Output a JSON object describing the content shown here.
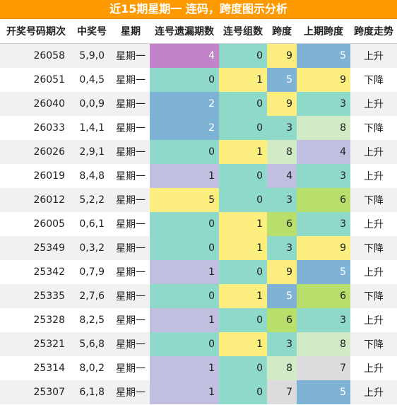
{
  "title": "近15期星期一 连码，跨度图示分析",
  "columns": [
    "开奖号码期次",
    "中奖号",
    "星期",
    "连号遗漏期数",
    "连号组数",
    "跨度",
    "上期跨度",
    "跨度走势"
  ],
  "colors": {
    "accent_orange": "#ff9900",
    "purple": "#c283c8",
    "teal": "#8ed9c9",
    "blue": "#7fb3d6",
    "yellow": "#fcee7f",
    "lavender": "#c0bfe0",
    "light_green": "#d1ebc6",
    "green": "#b8df6c",
    "gray": "#dcdcdc"
  },
  "rows": [
    {
      "issue": "26058",
      "nums": "5,9,0",
      "week": "星期一",
      "miss": "4",
      "miss_color": "#c283c8",
      "miss_white": true,
      "groups": "0",
      "groups_color": "#8ed9c9",
      "span": "9",
      "span_color": "#fcee7f",
      "span_white": false,
      "prev": "5",
      "prev_color": "#7fb3d6",
      "prev_white": true,
      "trend": "上升"
    },
    {
      "issue": "26051",
      "nums": "0,4,5",
      "week": "星期一",
      "miss": "0",
      "miss_color": "#8ed9c9",
      "miss_white": false,
      "groups": "1",
      "groups_color": "#fcee7f",
      "span": "5",
      "span_color": "#7fb3d6",
      "span_white": true,
      "prev": "9",
      "prev_color": "#fcee7f",
      "prev_white": false,
      "trend": "下降"
    },
    {
      "issue": "26040",
      "nums": "0,0,9",
      "week": "星期一",
      "miss": "2",
      "miss_color": "#7fb3d6",
      "miss_white": true,
      "groups": "0",
      "groups_color": "#8ed9c9",
      "span": "9",
      "span_color": "#fcee7f",
      "span_white": false,
      "prev": "3",
      "prev_color": "#8ed9c9",
      "prev_white": false,
      "trend": "上升"
    },
    {
      "issue": "26033",
      "nums": "1,4,1",
      "week": "星期一",
      "miss": "2",
      "miss_color": "#7fb3d6",
      "miss_white": true,
      "groups": "0",
      "groups_color": "#8ed9c9",
      "span": "3",
      "span_color": "#8ed9c9",
      "span_white": false,
      "prev": "8",
      "prev_color": "#d1ebc6",
      "prev_white": false,
      "trend": "下降"
    },
    {
      "issue": "26026",
      "nums": "2,9,1",
      "week": "星期一",
      "miss": "0",
      "miss_color": "#8ed9c9",
      "miss_white": false,
      "groups": "1",
      "groups_color": "#fcee7f",
      "span": "8",
      "span_color": "#d1ebc6",
      "span_white": false,
      "prev": "4",
      "prev_color": "#c0bfe0",
      "prev_white": false,
      "trend": "上升"
    },
    {
      "issue": "26019",
      "nums": "8,4,8",
      "week": "星期一",
      "miss": "1",
      "miss_color": "#c0bfe0",
      "miss_white": false,
      "groups": "0",
      "groups_color": "#8ed9c9",
      "span": "4",
      "span_color": "#c0bfe0",
      "span_white": false,
      "prev": "3",
      "prev_color": "#8ed9c9",
      "prev_white": false,
      "trend": "上升"
    },
    {
      "issue": "26012",
      "nums": "5,2,2",
      "week": "星期一",
      "miss": "5",
      "miss_color": "#fcee7f",
      "miss_white": false,
      "groups": "0",
      "groups_color": "#8ed9c9",
      "span": "3",
      "span_color": "#8ed9c9",
      "span_white": false,
      "prev": "6",
      "prev_color": "#b8df6c",
      "prev_white": false,
      "trend": "下降"
    },
    {
      "issue": "26005",
      "nums": "0,6,1",
      "week": "星期一",
      "miss": "0",
      "miss_color": "#8ed9c9",
      "miss_white": false,
      "groups": "1",
      "groups_color": "#fcee7f",
      "span": "6",
      "span_color": "#b8df6c",
      "span_white": false,
      "prev": "3",
      "prev_color": "#8ed9c9",
      "prev_white": false,
      "trend": "上升"
    },
    {
      "issue": "25349",
      "nums": "0,3,2",
      "week": "星期一",
      "miss": "0",
      "miss_color": "#8ed9c9",
      "miss_white": false,
      "groups": "1",
      "groups_color": "#fcee7f",
      "span": "3",
      "span_color": "#8ed9c9",
      "span_white": false,
      "prev": "9",
      "prev_color": "#fcee7f",
      "prev_white": false,
      "trend": "下降"
    },
    {
      "issue": "25342",
      "nums": "0,7,9",
      "week": "星期一",
      "miss": "1",
      "miss_color": "#c0bfe0",
      "miss_white": false,
      "groups": "0",
      "groups_color": "#8ed9c9",
      "span": "9",
      "span_color": "#fcee7f",
      "span_white": false,
      "prev": "5",
      "prev_color": "#7fb3d6",
      "prev_white": true,
      "trend": "上升"
    },
    {
      "issue": "25335",
      "nums": "2,7,6",
      "week": "星期一",
      "miss": "0",
      "miss_color": "#8ed9c9",
      "miss_white": false,
      "groups": "1",
      "groups_color": "#fcee7f",
      "span": "5",
      "span_color": "#7fb3d6",
      "span_white": true,
      "prev": "6",
      "prev_color": "#b8df6c",
      "prev_white": false,
      "trend": "下降"
    },
    {
      "issue": "25328",
      "nums": "8,2,5",
      "week": "星期一",
      "miss": "1",
      "miss_color": "#c0bfe0",
      "miss_white": false,
      "groups": "0",
      "groups_color": "#8ed9c9",
      "span": "6",
      "span_color": "#b8df6c",
      "span_white": false,
      "prev": "3",
      "prev_color": "#8ed9c9",
      "prev_white": false,
      "trend": "上升"
    },
    {
      "issue": "25321",
      "nums": "5,6,8",
      "week": "星期一",
      "miss": "0",
      "miss_color": "#8ed9c9",
      "miss_white": false,
      "groups": "1",
      "groups_color": "#fcee7f",
      "span": "3",
      "span_color": "#8ed9c9",
      "span_white": false,
      "prev": "8",
      "prev_color": "#d1ebc6",
      "prev_white": false,
      "trend": "下降"
    },
    {
      "issue": "25314",
      "nums": "8,0,2",
      "week": "星期一",
      "miss": "1",
      "miss_color": "#c0bfe0",
      "miss_white": false,
      "groups": "0",
      "groups_color": "#8ed9c9",
      "span": "8",
      "span_color": "#d1ebc6",
      "span_white": false,
      "prev": "7",
      "prev_color": "#dcdcdc",
      "prev_white": false,
      "trend": "上升"
    },
    {
      "issue": "25307",
      "nums": "6,1,8",
      "week": "星期一",
      "miss": "1",
      "miss_color": "#c0bfe0",
      "miss_white": false,
      "groups": "0",
      "groups_color": "#8ed9c9",
      "span": "7",
      "span_color": "#dcdcdc",
      "span_white": false,
      "prev": "5",
      "prev_color": "#7fb3d6",
      "prev_white": true,
      "trend": "上升"
    }
  ]
}
